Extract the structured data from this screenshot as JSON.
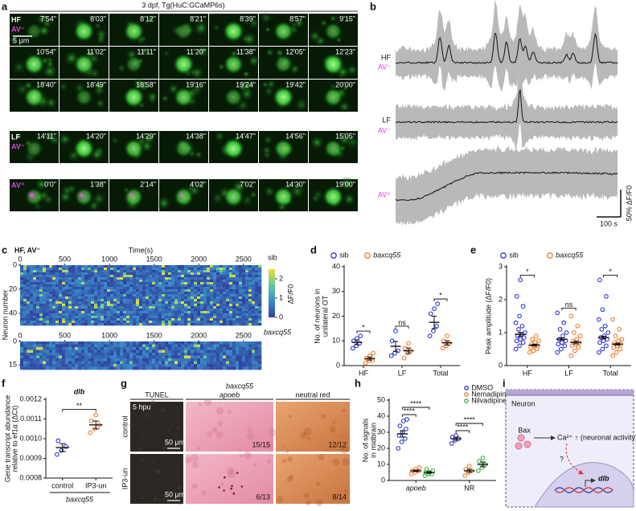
{
  "panels": {
    "a": {
      "letter": "a",
      "title": "3 dpf, Tg(HuC:GCaMP6s)",
      "scale": "5 μm",
      "rows": [
        {
          "label": "HF",
          "sublabel": "AV⁻",
          "times": [
            "7'54\"",
            "8'03\"",
            "8'12\"",
            "8'21\"",
            "8'39\"",
            "8'57\"",
            "9'15\""
          ]
        },
        {
          "times": [
            "10'54\"",
            "11'02\"",
            "11'11\"",
            "11'20\"",
            "11'38\"",
            "12'05\"",
            "12'23\""
          ]
        },
        {
          "times": [
            "18'40\"",
            "18'49\"",
            "18'58\"",
            "19'16\"",
            "19'24\"",
            "19'42\"",
            "20'00\""
          ]
        },
        {
          "label": "LF",
          "sublabel": "AV⁻",
          "times": [
            "14'11\"",
            "14'20\"",
            "14'29\"",
            "14'38\"",
            "14'47\"",
            "14'56\"",
            "15'05\""
          ]
        },
        {
          "label": "AV⁺",
          "times": [
            "0'0\"",
            "1'38\"",
            "2'14\"",
            "4'02\"",
            "7'02\"",
            "14'30\"",
            "19'00\""
          ]
        }
      ]
    },
    "b": {
      "letter": "b",
      "traces": [
        {
          "label": "HF",
          "sublabel": "AV⁻"
        },
        {
          "label": "LF",
          "sublabel": "AV⁻"
        },
        {
          "label": "AV⁺"
        }
      ],
      "time_scale": "100 s",
      "amplitude_scale": "50% ΔF/F0"
    },
    "c": {
      "letter": "c",
      "title": "HF, AV⁻",
      "xlabel": "Time(s)",
      "ylabel": "Neuron number",
      "xlim": [
        0,
        2700
      ],
      "xticks": [
        0,
        500,
        1000,
        1500,
        2000,
        2500
      ],
      "groups": [
        {
          "name": "sib",
          "ylim": [
            0,
            50
          ],
          "yticks": [
            0,
            20,
            40
          ]
        },
        {
          "name": "baxcq55",
          "ylim": [
            0,
            18
          ],
          "yticks": [
            0,
            15
          ]
        }
      ],
      "colorbar": {
        "label": "ΔF/F0",
        "lim": [
          0,
          2.5
        ],
        "ticks": [
          0,
          1,
          2
        ]
      }
    },
    "g": {
      "letter": "g",
      "title": "baxcq55",
      "columns": [
        "TUNEL",
        "apoeb",
        "neutral red"
      ],
      "rows": [
        "control",
        "IP3-un"
      ],
      "time": "5 hpu",
      "scales": [
        "50 μm",
        "50 μm"
      ],
      "counts": [
        [
          "15/15",
          "12/12"
        ],
        [
          "6/13",
          "8/14"
        ]
      ]
    },
    "i": {
      "letter": "i",
      "cell": "Neuron",
      "protein": "Bax",
      "ion": "Ca²⁺ ↑",
      "effect": "(neuronal activity)",
      "question": "?",
      "gene": "dlb"
    }
  },
  "chart_data": [
    {
      "type": "dot",
      "letter": "d",
      "ylabel": [
        "No. of neurons in",
        "unilateral OT"
      ],
      "categories": [
        "HF",
        "LF",
        "Total"
      ],
      "ylim": [
        0,
        40
      ],
      "yticks": [
        0,
        10,
        20,
        30,
        40
      ],
      "series": [
        {
          "name": "sib",
          "color": "#2b35d6",
          "values": [
            9.4,
            7.8,
            17.5
          ],
          "errors": [
            1.0,
            2.0,
            2.5
          ],
          "points": [
            [
              7,
              8,
              9,
              10,
              11,
              12
            ],
            [
              4,
              5,
              6,
              10,
              14
            ],
            [
              12,
              14,
              16,
              21,
              23,
              25
            ]
          ]
        },
        {
          "name": "baxcq55",
          "color": "#f07c2a",
          "values": [
            2.8,
            6,
            9.2
          ],
          "errors": [
            0.6,
            1.1,
            0.9
          ],
          "points": [
            [
              1,
              2,
              2,
              3,
              4,
              5
            ],
            [
              3,
              5,
              6,
              7,
              9
            ],
            [
              7,
              8,
              9,
              10,
              12
            ]
          ]
        }
      ],
      "annotations": [
        "*",
        "ns",
        "*"
      ]
    },
    {
      "type": "dot",
      "letter": "e",
      "ylabel": [
        "Peak amplitude (ΔF/F0)"
      ],
      "categories": [
        "HF",
        "LF",
        "Total"
      ],
      "ylim": [
        0,
        3
      ],
      "yticks": [
        0,
        1,
        2,
        3
      ],
      "series": [
        {
          "name": "sib",
          "color": "#2b35d6",
          "values": [
            0.95,
            0.8,
            0.85
          ],
          "errors": [
            0.06,
            0.04,
            0.04
          ],
          "points": [
            [
              0.5,
              0.6,
              0.7,
              0.75,
              0.8,
              0.85,
              0.9,
              0.95,
              1.0,
              1.1,
              1.2,
              1.3,
              1.5,
              1.8,
              2.1,
              2.6
            ],
            [
              0.4,
              0.5,
              0.6,
              0.65,
              0.7,
              0.75,
              0.8,
              0.9,
              1.0,
              1.1,
              1.3,
              1.6
            ],
            [
              0.4,
              0.5,
              0.6,
              0.7,
              0.75,
              0.8,
              0.85,
              0.9,
              1.0,
              1.1,
              1.2,
              1.4,
              1.7,
              2.1,
              2.6
            ]
          ]
        },
        {
          "name": "baxcq55",
          "color": "#f07c2a",
          "values": [
            0.62,
            0.7,
            0.65
          ],
          "errors": [
            0.03,
            0.04,
            0.03
          ],
          "points": [
            [
              0.4,
              0.45,
              0.5,
              0.55,
              0.6,
              0.6,
              0.65,
              0.7,
              0.75,
              0.8,
              0.9
            ],
            [
              0.3,
              0.45,
              0.55,
              0.6,
              0.65,
              0.7,
              0.75,
              0.8,
              0.9,
              1.0,
              1.2,
              1.5
            ],
            [
              0.3,
              0.4,
              0.5,
              0.55,
              0.6,
              0.65,
              0.7,
              0.75,
              0.8,
              0.9,
              1.1,
              1.4
            ]
          ]
        }
      ],
      "annotations": [
        "*",
        "ns",
        "*"
      ]
    },
    {
      "type": "dot",
      "letter": "f",
      "title": "dlb",
      "ylabel": [
        "Gene transcript abundance",
        "relative to ef1α (ΔCt)"
      ],
      "group": "baxcq55",
      "categories": [
        "control",
        "IP3-un"
      ],
      "ylim": [
        0.0008,
        0.0012
      ],
      "yticks": [
        0.0008,
        0.0009,
        {
          "value": 0.001,
          "label": "0.0010"
        },
        0.0011,
        0.0012
      ],
      "colors": [
        "#2b35d6",
        "#f07c2a"
      ],
      "values": [
        0.000955,
        0.00107
      ],
      "errors": [
        2e-05,
        2e-05
      ],
      "points": [
        [
          0.00092,
          0.00094,
          0.00096,
          0.00099
        ],
        [
          0.00103,
          0.00105,
          0.00107,
          0.00109,
          0.00112
        ]
      ],
      "annotations": [
        "**"
      ]
    },
    {
      "type": "dot",
      "letter": "h",
      "ylabel": [
        "No. of signals",
        "in midbrain"
      ],
      "categories": [
        "apoeb",
        "NR"
      ],
      "ylim": [
        0,
        50
      ],
      "yticks": [
        0,
        10,
        20,
        30,
        40,
        50
      ],
      "series": [
        {
          "name": "DMSO",
          "color": "#2b35d6",
          "values": [
            29,
            26
          ],
          "errors": [
            2,
            1
          ],
          "points": [
            [
              20,
              24,
              26,
              28,
              30,
              32,
              34,
              37,
              38
            ],
            [
              23,
              25,
              26,
              27,
              28
            ]
          ]
        },
        {
          "name": "Nemadipine",
          "color": "#f07c2a",
          "values": [
            6,
            6
          ],
          "errors": [
            0.5,
            1
          ],
          "points": [
            [
              4,
              5,
              6,
              6,
              7,
              8
            ],
            [
              3,
              5,
              6,
              7,
              9
            ]
          ]
        },
        {
          "name": "Nilvadipine",
          "color": "#3cb043",
          "values": [
            5,
            10
          ],
          "errors": [
            0.5,
            1.5
          ],
          "points": [
            [
              3,
              4,
              4,
              5,
              5,
              6,
              7
            ],
            [
              6,
              8,
              10,
              12,
              14
            ]
          ]
        }
      ],
      "annotations": [
        "****",
        "****",
        "****",
        "****"
      ]
    }
  ]
}
